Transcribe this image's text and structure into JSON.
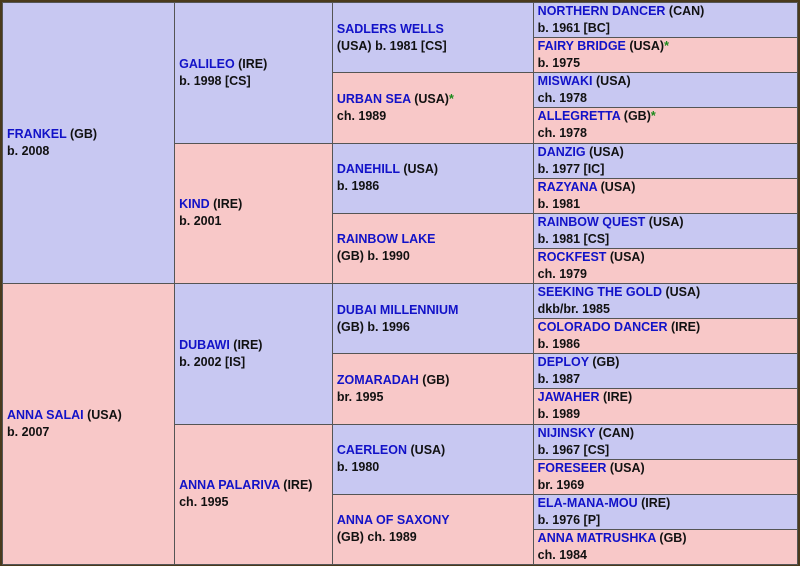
{
  "gen1": [
    {
      "name": "FRANKEL",
      "after": " (GB)",
      "line2": "b. 2008"
    },
    {
      "name": "ANNA SALAI",
      "after": " (USA)",
      "line2": "b. 2007"
    }
  ],
  "gen2": [
    {
      "name": "GALILEO",
      "after": " (IRE)",
      "line2": "b. 1998 [CS]"
    },
    {
      "name": "KIND",
      "after": " (IRE)",
      "line2": "b. 2001"
    },
    {
      "name": "DUBAWI",
      "after": " (IRE)",
      "line2": "b. 2002 [IS]"
    },
    {
      "name": "ANNA PALARIVA",
      "after": " (IRE)",
      "line2": "ch. 1995"
    }
  ],
  "gen3": [
    {
      "name": "SADLERS WELLS",
      "after": "",
      "line2": "(USA) b. 1981 [CS]"
    },
    {
      "name": "URBAN SEA",
      "after": " (USA)",
      "star": "*",
      "line2": "ch. 1989"
    },
    {
      "name": "DANEHILL",
      "after": " (USA)",
      "line2": "b. 1986"
    },
    {
      "name": "RAINBOW LAKE",
      "after": "",
      "line2": "(GB) b. 1990"
    },
    {
      "name": "DUBAI MILLENNIUM",
      "after": "",
      "line2": "(GB) b. 1996"
    },
    {
      "name": "ZOMARADAH",
      "after": " (GB)",
      "line2": "br. 1995"
    },
    {
      "name": "CAERLEON",
      "after": " (USA)",
      "line2": "b. 1980"
    },
    {
      "name": "ANNA OF SAXONY",
      "after": "",
      "line2": "(GB) ch. 1989"
    }
  ],
  "gen4": [
    {
      "name": "NORTHERN DANCER",
      "after": " (CAN)",
      "line2": "b. 1961 [BC]"
    },
    {
      "name": "FAIRY BRIDGE",
      "after": " (USA)",
      "star": "*",
      "line2": "b. 1975"
    },
    {
      "name": "MISWAKI",
      "after": " (USA)",
      "line2": "ch. 1978"
    },
    {
      "name": "ALLEGRETTA",
      "after": " (GB)",
      "star": "*",
      "line2": "ch. 1978"
    },
    {
      "name": "DANZIG",
      "after": " (USA)",
      "line2": "b. 1977 [IC]"
    },
    {
      "name": "RAZYANA",
      "after": " (USA)",
      "line2": "b. 1981"
    },
    {
      "name": "RAINBOW QUEST",
      "after": " (USA)",
      "line2": "b. 1981 [CS]"
    },
    {
      "name": "ROCKFEST",
      "after": " (USA)",
      "line2": "ch. 1979"
    },
    {
      "name": "SEEKING THE GOLD",
      "after": " (USA)",
      "line2": "dkb/br. 1985"
    },
    {
      "name": "COLORADO DANCER",
      "after": " (IRE)",
      "line2": "b. 1986"
    },
    {
      "name": "DEPLOY",
      "after": " (GB)",
      "line2": "b. 1987"
    },
    {
      "name": "JAWAHER",
      "after": " (IRE)",
      "line2": "b. 1989"
    },
    {
      "name": "NIJINSKY",
      "after": " (CAN)",
      "line2": "b. 1967 [CS]"
    },
    {
      "name": "FORESEER",
      "after": " (USA)",
      "line2": "br. 1969"
    },
    {
      "name": "ELA-MANA-MOU",
      "after": " (IRE)",
      "line2": "b. 1976 [P]"
    },
    {
      "name": "ANNA MATRUSHKA",
      "after": " (GB)",
      "line2": "ch. 1984"
    }
  ]
}
